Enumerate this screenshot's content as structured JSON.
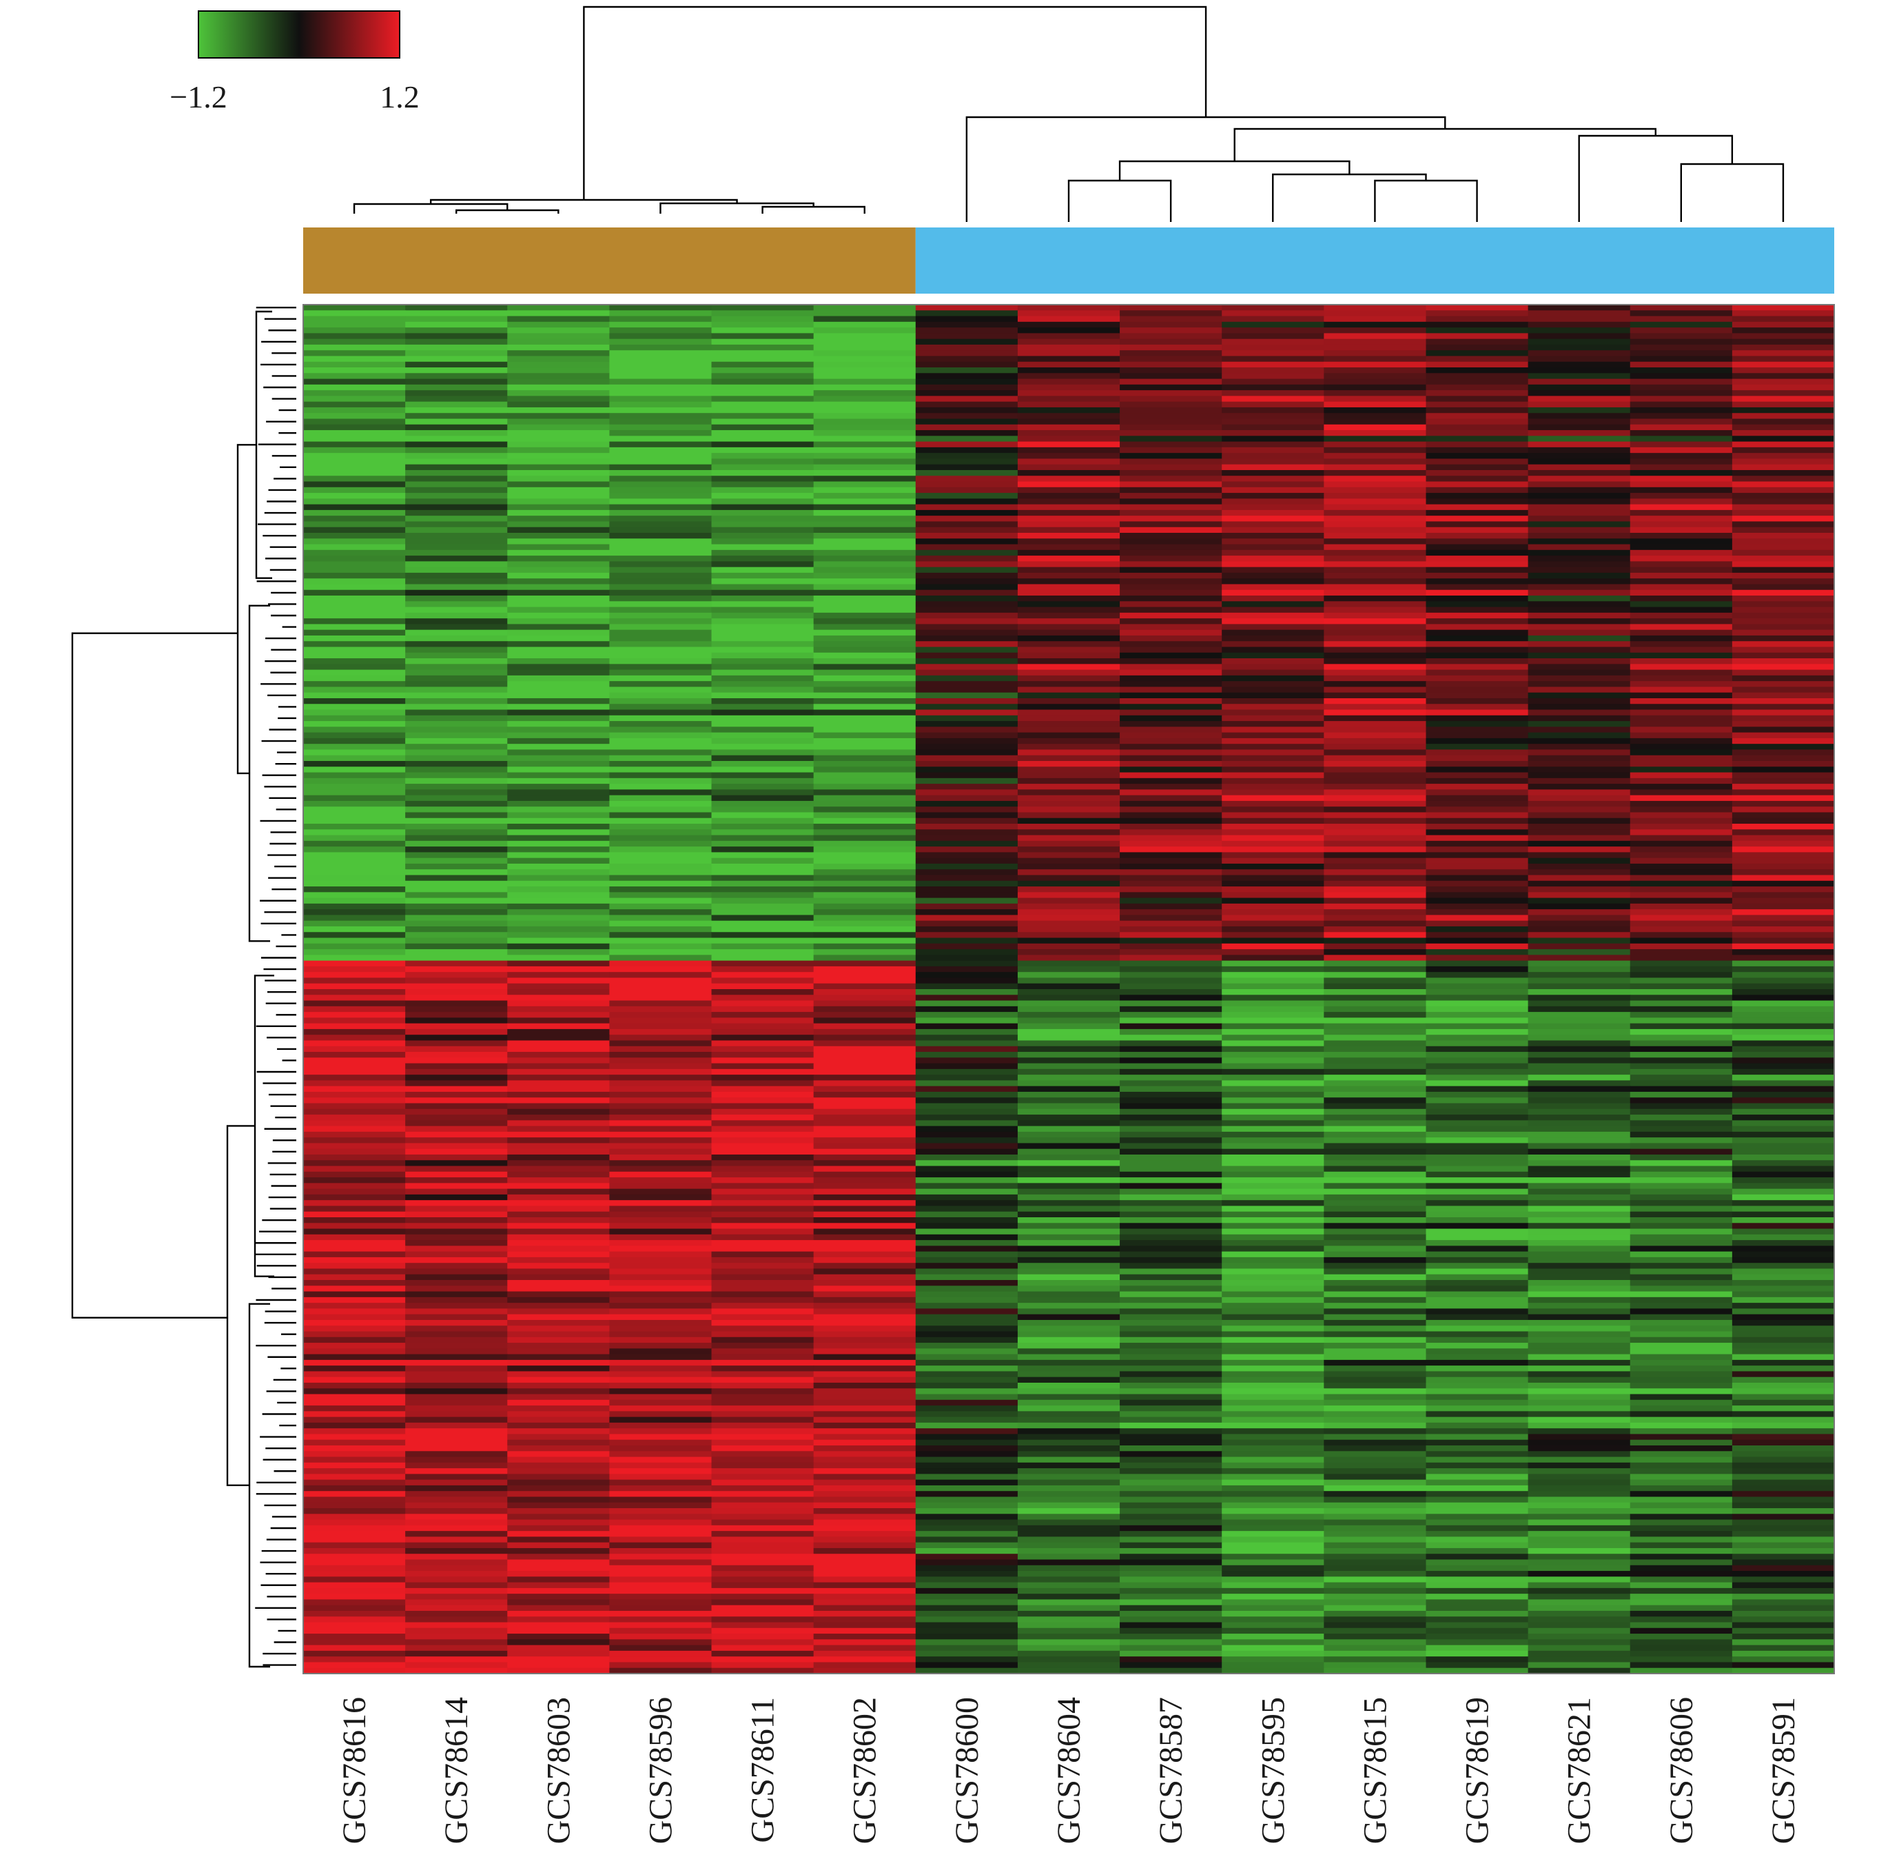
{
  "chart_data": {
    "type": "heatmap",
    "title": "",
    "xlabel": "",
    "ylabel": "",
    "color_scale": {
      "min": -1.2,
      "max": 1.2,
      "min_label": "−1.2",
      "max_label": "1.2",
      "low_color": "#4ec43a",
      "mid_color": "#101010",
      "high_color": "#ec1c24"
    },
    "columns": [
      "GCS78616",
      "GCS78614",
      "GCS78603",
      "GCS78596",
      "GCS78611",
      "GCS78602",
      "GCS78600",
      "GCS78604",
      "GCS78587",
      "GCS78595",
      "GCS78615",
      "GCS78619",
      "GCS78621",
      "GCS78606",
      "GCS78591"
    ],
    "column_groups": [
      {
        "color": "#b8862e",
        "columns": [
          "GCS78616",
          "GCS78614",
          "GCS78603",
          "GCS78596",
          "GCS78611",
          "GCS78602"
        ]
      },
      {
        "color": "#53bbea",
        "columns": [
          "GCS78600",
          "GCS78604",
          "GCS78587",
          "GCS78595",
          "GCS78615",
          "GCS78619",
          "GCS78621",
          "GCS78606",
          "GCS78591"
        ]
      }
    ],
    "row_blocks": [
      {
        "rows_fraction": 0.48,
        "mean_values": [
          -1.0,
          -0.9,
          -1.05,
          -0.95,
          -1.0,
          -1.0,
          0.15,
          0.55,
          0.45,
          0.5,
          0.6,
          0.4,
          0.2,
          0.45,
          0.6
        ]
      },
      {
        "rows_fraction": 0.52,
        "mean_values": [
          1.0,
          0.85,
          0.9,
          0.9,
          0.95,
          0.95,
          -0.3,
          -0.6,
          -0.5,
          -0.85,
          -0.7,
          -0.7,
          -0.6,
          -0.55,
          -0.45
        ]
      }
    ],
    "grid": false,
    "legend_position": "top-left",
    "column_dendrogram": "top",
    "row_dendrogram": "left"
  }
}
